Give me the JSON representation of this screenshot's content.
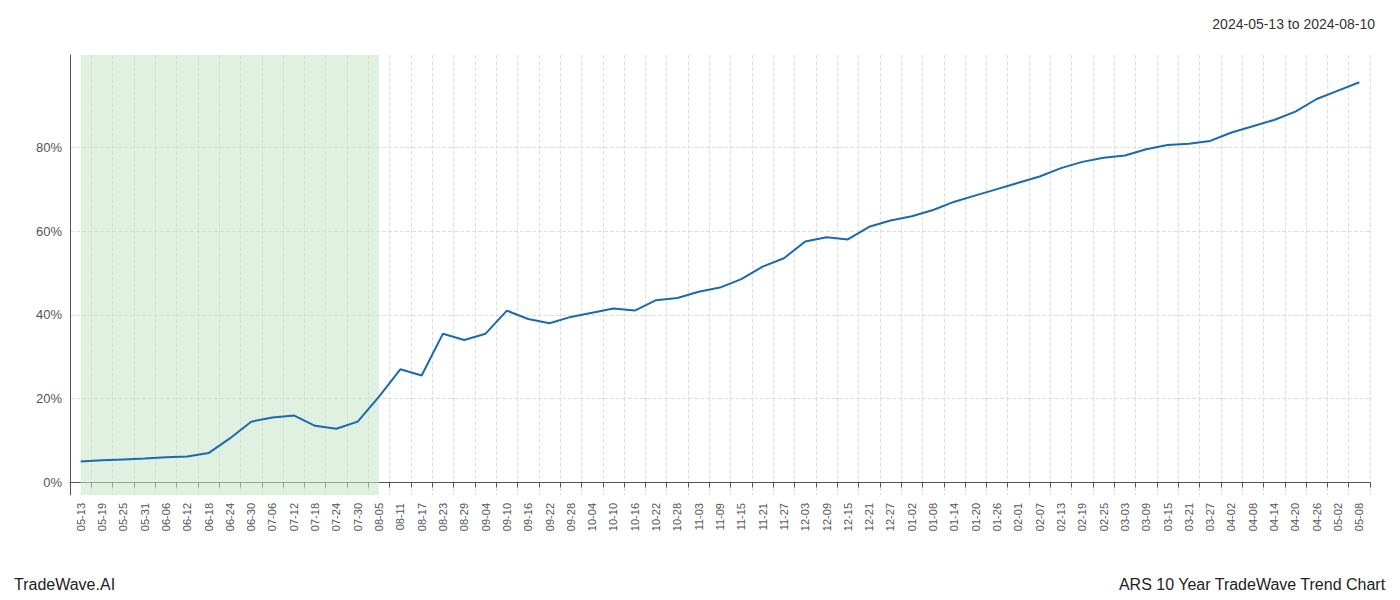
{
  "chart_data": {
    "type": "line",
    "title": "2024-05-13 to 2024-08-10",
    "annotations": [
      "TradeWave.AI",
      "ARS 10 Year TradeWave Trend Chart"
    ],
    "color": "#1a6aad",
    "grid": true,
    "shaded_range": {
      "start": "05-13",
      "end": "08-05",
      "color": "#c8e6c8"
    },
    "ylim": [
      -3,
      102
    ],
    "yticks": [
      {
        "value": 0,
        "label": "0%"
      },
      {
        "value": 20,
        "label": "20%"
      },
      {
        "value": 40,
        "label": "40%"
      },
      {
        "value": 60,
        "label": "60%"
      },
      {
        "value": 80,
        "label": "80%"
      }
    ],
    "categories": [
      "05-13",
      "05-19",
      "05-25",
      "05-31",
      "06-06",
      "06-12",
      "06-18",
      "06-24",
      "06-30",
      "07-06",
      "07-12",
      "07-18",
      "07-24",
      "07-30",
      "08-05",
      "08-11",
      "08-17",
      "08-23",
      "08-29",
      "09-04",
      "09-10",
      "09-16",
      "09-22",
      "09-28",
      "10-04",
      "10-10",
      "10-16",
      "10-22",
      "10-28",
      "11-03",
      "11-09",
      "11-15",
      "11-21",
      "11-27",
      "12-03",
      "12-09",
      "12-15",
      "12-21",
      "12-27",
      "01-02",
      "01-08",
      "01-14",
      "01-20",
      "01-26",
      "02-01",
      "02-07",
      "02-13",
      "02-19",
      "02-25",
      "03-03",
      "03-09",
      "03-15",
      "03-21",
      "03-27",
      "04-02",
      "04-08",
      "04-14",
      "04-20",
      "04-26",
      "05-02",
      "05-08"
    ],
    "values": [
      5.0,
      5.3,
      5.5,
      5.7,
      6.0,
      6.2,
      7.0,
      10.5,
      14.5,
      15.5,
      16.0,
      13.5,
      12.8,
      14.5,
      20.5,
      27.0,
      25.5,
      35.5,
      34.0,
      35.5,
      41.0,
      39.0,
      38.0,
      39.5,
      40.5,
      41.5,
      41.0,
      43.5,
      44.0,
      45.5,
      46.5,
      48.5,
      51.5,
      53.5,
      57.5,
      58.5,
      58.0,
      61.0,
      62.5,
      63.5,
      65.0,
      67.0,
      68.5,
      70.0,
      71.5,
      73.0,
      75.0,
      76.5,
      77.5,
      78.0,
      79.5,
      80.5,
      80.8,
      81.5,
      83.5,
      85.0,
      86.5,
      88.5,
      91.5,
      93.5,
      95.5
    ]
  }
}
